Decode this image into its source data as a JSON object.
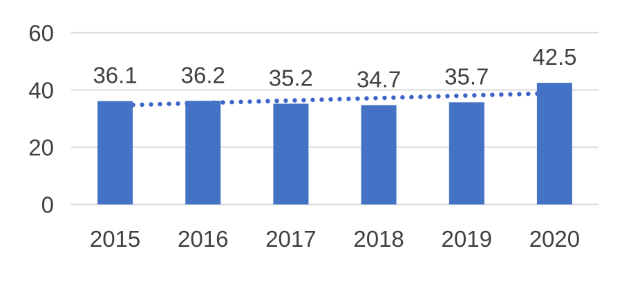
{
  "chart_data": {
    "type": "bar",
    "title": "",
    "xlabel": "",
    "ylabel": "",
    "categories": [
      "2015",
      "2016",
      "2017",
      "2018",
      "2019",
      "2020"
    ],
    "values": [
      36.1,
      36.2,
      35.2,
      34.7,
      35.7,
      42.5
    ],
    "data_labels": [
      "36.1",
      "36.2",
      "35.2",
      "34.7",
      "35.7",
      "42.5"
    ],
    "yticks": [
      0,
      20,
      40,
      60
    ],
    "ytick_labels": [
      "0",
      "20",
      "40",
      "60"
    ],
    "ylim": [
      0,
      60
    ],
    "grid": "horizontal",
    "legend": "none",
    "bar_color": "#4472C4",
    "gridline_color": "#D9D9D9",
    "text_color": "#404040",
    "trendline": {
      "type": "linear",
      "style": "dotted",
      "color": "#3D64C8",
      "start_value": 34.6,
      "end_value": 38.9
    }
  }
}
